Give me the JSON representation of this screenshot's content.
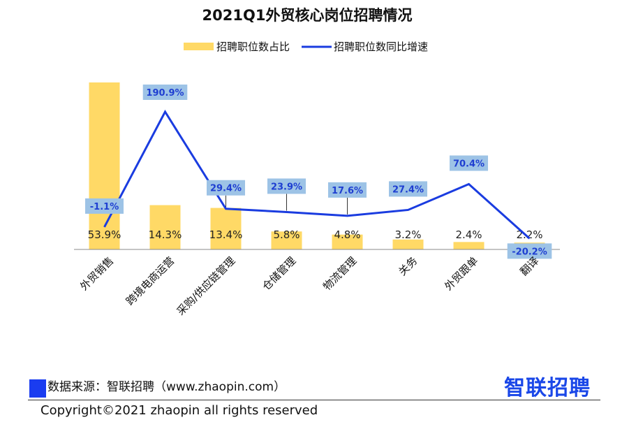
{
  "chart_data": {
    "type": "bar",
    "title": "2021Q1外贸核心岗位招聘情况",
    "categories": [
      "外贸销售",
      "跨境电商运营",
      "采购/供应链管理",
      "仓储管理",
      "物流管理",
      "关务",
      "外贸跟单",
      "翻译"
    ],
    "series": [
      {
        "name": "招聘职位数占比",
        "type": "bar",
        "color": "#ffd966",
        "values": [
          53.9,
          14.3,
          13.4,
          5.8,
          4.8,
          3.2,
          2.4,
          2.2
        ],
        "labels": [
          "53.9%",
          "14.3%",
          "13.4%",
          "5.8%",
          "4.8%",
          "3.2%",
          "2.4%",
          "2.2%"
        ]
      },
      {
        "name": "招聘职位数同比增速",
        "type": "line",
        "color": "#1a3ce0",
        "values": [
          -1.1,
          190.9,
          29.4,
          23.9,
          17.6,
          27.4,
          70.4,
          -20.2
        ],
        "labels": [
          "-1.1%",
          "190.9%",
          "29.4%",
          "23.9%",
          "17.6%",
          "27.4%",
          "70.4%",
          "-20.2%"
        ]
      }
    ],
    "legend_position": "top",
    "label_box_color": "#9dc3e6",
    "label_text_color": "#1f3fd1"
  },
  "footer": {
    "source": "数据来源：智联招聘（www.zhaopin.com）",
    "logo": "智联招聘",
    "copyright": "Copyright©2021 zhaopin all rights reserved"
  }
}
